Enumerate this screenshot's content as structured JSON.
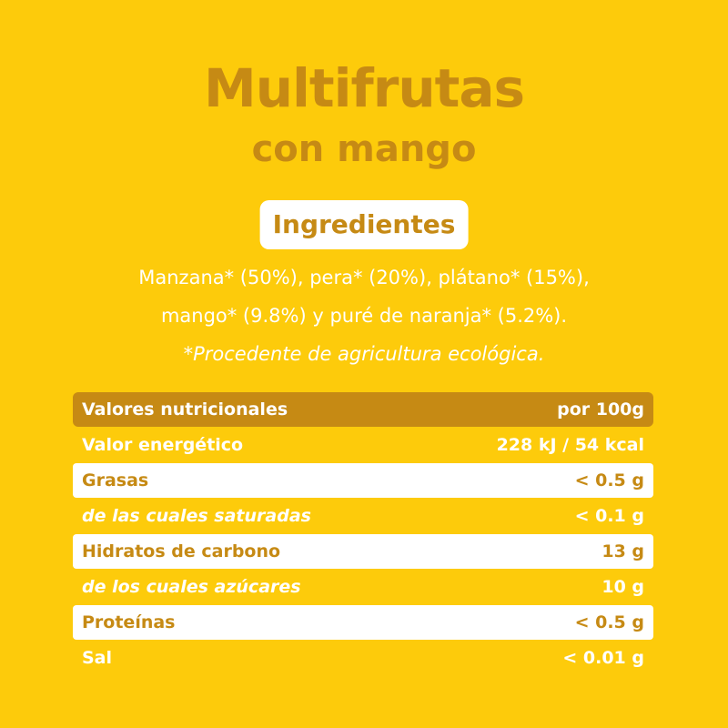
{
  "title": "Multifrutas",
  "subtitle": "con mango",
  "ingredients": {
    "heading": "Ingredientes",
    "line1": "Manzana* (50%), pera* (20%), plátano* (15%),",
    "line2": "mango* (9.8%) y puré de naranja* (5.2%).",
    "note": "*Procedente de agricultura ecológica."
  },
  "nutrition": {
    "header_label": "Valores nutricionales",
    "header_value": "por 100g",
    "rows": [
      {
        "label": "Valor energético",
        "value": "228 kJ / 54 kcal"
      },
      {
        "label": "Grasas",
        "value": "< 0.5 g"
      },
      {
        "label": "de las cuales saturadas",
        "value": "< 0.1 g"
      },
      {
        "label": "Hidratos de carbono",
        "value": "13 g"
      },
      {
        "label": "de los cuales azúcares",
        "value": "10 g"
      },
      {
        "label": "Proteínas",
        "value": "< 0.5 g"
      },
      {
        "label": "Sal",
        "value": "< 0.01 g"
      }
    ]
  },
  "colors": {
    "background": "#FDCB0B",
    "accent": "#C68A14",
    "white": "#FFFFFF"
  }
}
